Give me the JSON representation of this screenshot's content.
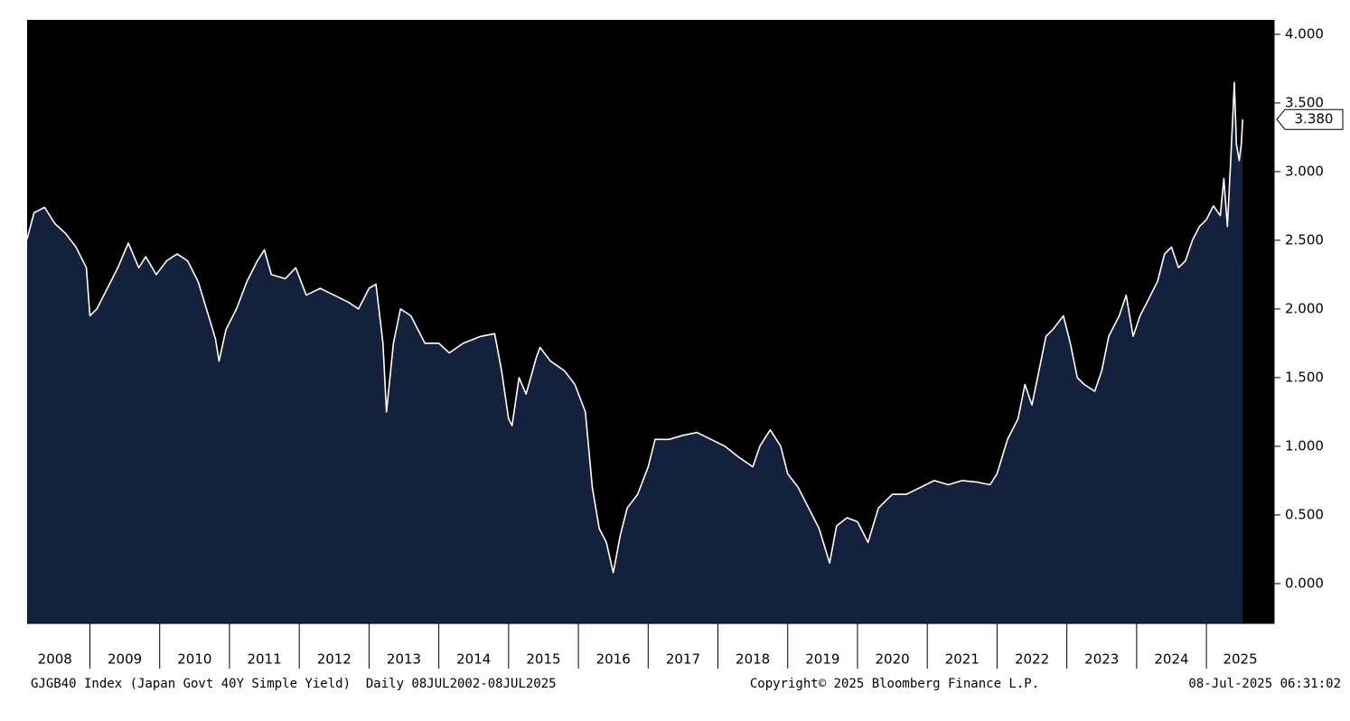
{
  "chart_data": {
    "type": "area",
    "x": [
      2008.1,
      2008.2,
      2008.35,
      2008.5,
      2008.65,
      2008.8,
      2008.95,
      2009.0,
      2009.1,
      2009.25,
      2009.4,
      2009.55,
      2009.7,
      2009.8,
      2009.95,
      2010.1,
      2010.25,
      2010.4,
      2010.55,
      2010.7,
      2010.8,
      2010.85,
      2010.95,
      2011.1,
      2011.25,
      2011.4,
      2011.5,
      2011.6,
      2011.8,
      2011.95,
      2012.1,
      2012.3,
      2012.5,
      2012.7,
      2012.85,
      2013.0,
      2013.1,
      2013.2,
      2013.25,
      2013.35,
      2013.45,
      2013.6,
      2013.8,
      2014.0,
      2014.15,
      2014.35,
      2014.6,
      2014.8,
      2014.9,
      2015.0,
      2015.05,
      2015.15,
      2015.25,
      2015.4,
      2015.45,
      2015.6,
      2015.8,
      2015.95,
      2016.1,
      2016.2,
      2016.3,
      2016.4,
      2016.5,
      2016.6,
      2016.7,
      2016.85,
      2017.0,
      2017.1,
      2017.3,
      2017.5,
      2017.7,
      2017.9,
      2018.1,
      2018.3,
      2018.5,
      2018.6,
      2018.75,
      2018.9,
      2019.0,
      2019.15,
      2019.3,
      2019.45,
      2019.6,
      2019.7,
      2019.85,
      2020.0,
      2020.15,
      2020.3,
      2020.5,
      2020.7,
      2020.9,
      2021.1,
      2021.3,
      2021.5,
      2021.7,
      2021.9,
      2022.0,
      2022.15,
      2022.3,
      2022.4,
      2022.5,
      2022.6,
      2022.7,
      2022.8,
      2022.95,
      2023.05,
      2023.15,
      2023.25,
      2023.4,
      2023.5,
      2023.6,
      2023.75,
      2023.85,
      2023.95,
      2024.05,
      2024.15,
      2024.3,
      2024.4,
      2024.5,
      2024.6,
      2024.7,
      2024.8,
      2024.9,
      2025.0,
      2025.1,
      2025.2,
      2025.25,
      2025.3,
      2025.35,
      2025.4,
      2025.43,
      2025.47,
      2025.5,
      2025.52
    ],
    "values": [
      2.51,
      2.7,
      2.74,
      2.62,
      2.55,
      2.45,
      2.3,
      1.95,
      2.0,
      2.15,
      2.3,
      2.48,
      2.3,
      2.38,
      2.25,
      2.35,
      2.4,
      2.35,
      2.2,
      1.95,
      1.78,
      1.62,
      1.85,
      2.0,
      2.2,
      2.35,
      2.43,
      2.25,
      2.22,
      2.3,
      2.1,
      2.15,
      2.1,
      2.05,
      2.0,
      2.15,
      2.18,
      1.75,
      1.25,
      1.75,
      2.0,
      1.95,
      1.75,
      1.75,
      1.68,
      1.75,
      1.8,
      1.82,
      1.55,
      1.2,
      1.15,
      1.5,
      1.38,
      1.65,
      1.72,
      1.62,
      1.55,
      1.45,
      1.25,
      0.7,
      0.4,
      0.3,
      0.08,
      0.35,
      0.55,
      0.65,
      0.85,
      1.05,
      1.05,
      1.08,
      1.1,
      1.05,
      1.0,
      0.92,
      0.85,
      1.0,
      1.12,
      1.0,
      0.8,
      0.7,
      0.55,
      0.4,
      0.15,
      0.42,
      0.48,
      0.45,
      0.3,
      0.55,
      0.65,
      0.65,
      0.7,
      0.75,
      0.72,
      0.75,
      0.74,
      0.72,
      0.8,
      1.05,
      1.2,
      1.45,
      1.3,
      1.55,
      1.8,
      1.85,
      1.95,
      1.75,
      1.5,
      1.45,
      1.4,
      1.55,
      1.8,
      1.95,
      2.1,
      1.8,
      1.95,
      2.05,
      2.2,
      2.4,
      2.45,
      2.3,
      2.35,
      2.5,
      2.6,
      2.65,
      2.75,
      2.68,
      2.95,
      2.6,
      3.1,
      3.65,
      3.2,
      3.08,
      3.2,
      3.38
    ],
    "value_labels": [
      null,
      null,
      null,
      null,
      null,
      null,
      null,
      null,
      null,
      null,
      null,
      null,
      null,
      null,
      null,
      null,
      null,
      null,
      null,
      null,
      null,
      null,
      null,
      null,
      null,
      null,
      null,
      null,
      null,
      null,
      null,
      null,
      null,
      null,
      null,
      null,
      null,
      null,
      null,
      null,
      null,
      null,
      null,
      null,
      null,
      null,
      null,
      null,
      null,
      null,
      null,
      null,
      null,
      null,
      null,
      null,
      null,
      null,
      null,
      null,
      null,
      null,
      null,
      null,
      null,
      null,
      null,
      null,
      null,
      null,
      null,
      null,
      null,
      null,
      null,
      null,
      null,
      null,
      null,
      null,
      null,
      null,
      null,
      null,
      null,
      null,
      null,
      null,
      null,
      null,
      null,
      null,
      null,
      null,
      null,
      null,
      null,
      null,
      null,
      null,
      null,
      null,
      null,
      null,
      null,
      null,
      null,
      null,
      null,
      null,
      null,
      null,
      null,
      null,
      null,
      null,
      null,
      null,
      null,
      null,
      null,
      null,
      null,
      null,
      null,
      null,
      null,
      null,
      null,
      null,
      null,
      null,
      null,
      "3.380"
    ],
    "color": "#13213d",
    "line_color": "#ffffff",
    "background": "#000000",
    "xlim": [
      2008.1,
      2025.97
    ],
    "xticks": [
      2008,
      2009,
      2010,
      2011,
      2012,
      2013,
      2014,
      2015,
      2016,
      2017,
      2018,
      2019,
      2020,
      2021,
      2022,
      2023,
      2024,
      2025
    ],
    "ylim": [
      -0.29,
      4.105
    ],
    "yticks": [
      {
        "value": 0,
        "label": "0.000"
      },
      {
        "value": 0.5,
        "label": "0.500"
      },
      {
        "value": 1,
        "label": "1.000"
      },
      {
        "value": 1.5,
        "label": "1.500"
      },
      {
        "value": 2,
        "label": "2.000"
      },
      {
        "value": 2.5,
        "label": "2.500"
      },
      {
        "value": 3,
        "label": "3.000"
      },
      {
        "value": 3.5,
        "label": "3.500"
      },
      {
        "value": 4,
        "label": "4.000"
      }
    ],
    "notes": [
      "GJGB40 Index (Japan Govt 40Y Simple Yield)  Daily 08JUL2002-08JUL2025",
      "Copyright© 2025 Bloomberg Finance L.P.",
      "08-Jul-2025 06:31:02"
    ]
  }
}
